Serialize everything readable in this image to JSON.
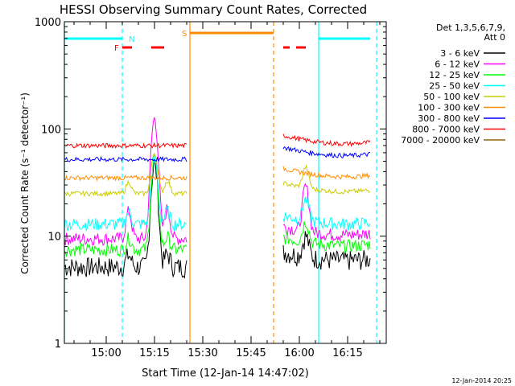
{
  "chart_data": {
    "type": "line",
    "title": "HESSI Observing Summary Count Rates, Corrected",
    "xlabel": "Start Time (12-Jan-14 14:47:02)",
    "ylabel": "Corrected Count Rate (s⁻¹ detector⁻¹)",
    "yscale": "log",
    "ylim": [
      1,
      1000
    ],
    "xlim_minutes_after_start": [
      0,
      100
    ],
    "x_ticks": [
      "15:00",
      "15:15",
      "15:30",
      "15:45",
      "16:00",
      "16:15"
    ],
    "y_ticks": [
      "1",
      "10",
      "100",
      "1000"
    ],
    "legend_title": [
      "Det 1,3,5,6,7,9,",
      "Att 0"
    ],
    "legend_position": "right",
    "series": [
      {
        "name": "3 - 6 keV",
        "color": "#000000",
        "base_before": 5.2,
        "base_after": 5.5
      },
      {
        "name": "6 - 12 keV",
        "color": "#ff00ff",
        "base_before": 9.5,
        "base_after": 9.5
      },
      {
        "name": "12 - 25 keV",
        "color": "#00ff00",
        "base_before": 7.5,
        "base_after": 7.5
      },
      {
        "name": "25 - 50 keV",
        "color": "#00ffff",
        "base_before": 13.0,
        "base_after": 12.0
      },
      {
        "name": "50 - 100 keV",
        "color": "#cccc00",
        "base_before": 25.0,
        "base_after": 24.0
      },
      {
        "name": "100 - 300 keV",
        "color": "#ff8c00",
        "base_before": 35.0,
        "base_after": 33.0
      },
      {
        "name": "300 - 800 keV",
        "color": "#0000ff",
        "base_before": 52.0,
        "base_after": 52.0
      },
      {
        "name": "800 - 7000 keV",
        "color": "#ff0000",
        "base_before": 70.0,
        "base_after": 67.0
      },
      {
        "name": "7000 - 20000 keV",
        "color": "#8b6508",
        "base_before": null,
        "base_after": null
      }
    ],
    "data_intervals_minutes": [
      [
        0,
        38
      ],
      [
        68,
        95
      ]
    ],
    "peak_6_12_keV": {
      "time_minutes": 28,
      "value": 125
    },
    "flags": [
      {
        "label": "N",
        "color": "#00ffff",
        "intervals": [
          [
            0,
            18
          ],
          [
            79,
            95
          ]
        ]
      },
      {
        "label": "F",
        "color": "#ff0000",
        "intervals": [
          [
            18,
            21
          ],
          [
            27,
            31
          ],
          [
            68,
            70
          ],
          [
            72,
            75
          ]
        ]
      },
      {
        "label": "S",
        "color": "#ff8c00",
        "intervals": [
          [
            39,
            65
          ]
        ]
      }
    ],
    "event_lines": [
      {
        "time_minutes": 0,
        "color": "#00ffff",
        "style": "solid"
      },
      {
        "time_minutes": 18,
        "color": "#00ffff",
        "style": "dashed"
      },
      {
        "time_minutes": 39,
        "color": "#ff8c00",
        "style": "solid"
      },
      {
        "time_minutes": 65,
        "color": "#ff8c00",
        "style": "dashed"
      },
      {
        "time_minutes": 79,
        "color": "#00ffff",
        "style": "solid"
      },
      {
        "time_minutes": 97,
        "color": "#00ffff",
        "style": "dashed"
      }
    ]
  },
  "footer_date": "12-Jan-2014 20:25"
}
